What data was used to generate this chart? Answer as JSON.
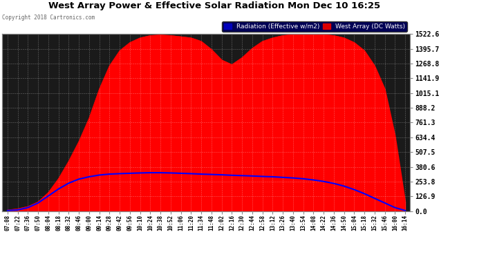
{
  "title": "West Array Power & Effective Solar Radiation Mon Dec 10 16:25",
  "copyright": "Copyright 2018 Cartronics.com",
  "legend_radiation": "Radiation (Effective w/m2)",
  "legend_west": "West Array (DC Watts)",
  "legend_radiation_bg": "#0000bb",
  "legend_west_bg": "#dd0000",
  "plot_bg_color": "#1a1a1a",
  "outer_bg": "#ffffff",
  "grid_color": "#ffffff",
  "ymin": 0.0,
  "ymax": 1522.6,
  "yticks": [
    0.0,
    126.9,
    253.8,
    380.6,
    507.5,
    634.4,
    761.3,
    888.2,
    1015.1,
    1141.9,
    1268.8,
    1395.7,
    1522.6
  ],
  "xtick_labels": [
    "07:08",
    "07:22",
    "07:36",
    "07:50",
    "08:04",
    "08:18",
    "08:32",
    "08:46",
    "09:00",
    "09:14",
    "09:28",
    "09:42",
    "09:56",
    "10:10",
    "10:24",
    "10:38",
    "10:52",
    "11:06",
    "11:20",
    "11:34",
    "11:48",
    "12:02",
    "12:16",
    "12:30",
    "12:44",
    "12:58",
    "13:12",
    "13:26",
    "13:40",
    "13:54",
    "14:08",
    "14:22",
    "14:36",
    "14:50",
    "15:04",
    "15:18",
    "15:32",
    "15:46",
    "16:00",
    "16:14"
  ],
  "red_values": [
    10,
    20,
    40,
    80,
    160,
    280,
    430,
    600,
    800,
    1050,
    1250,
    1380,
    1450,
    1490,
    1510,
    1515,
    1510,
    1500,
    1490,
    1460,
    1390,
    1300,
    1260,
    1320,
    1400,
    1460,
    1490,
    1510,
    1518,
    1520,
    1522,
    1518,
    1510,
    1490,
    1450,
    1380,
    1250,
    1050,
    650,
    80
  ],
  "blue_values": [
    5,
    10,
    30,
    70,
    130,
    190,
    240,
    275,
    295,
    310,
    318,
    322,
    325,
    328,
    330,
    330,
    328,
    325,
    322,
    318,
    315,
    312,
    308,
    305,
    302,
    298,
    295,
    290,
    285,
    278,
    268,
    255,
    238,
    215,
    185,
    150,
    110,
    70,
    30,
    5
  ],
  "red_color": "#ff0000",
  "blue_color": "#0000ff"
}
